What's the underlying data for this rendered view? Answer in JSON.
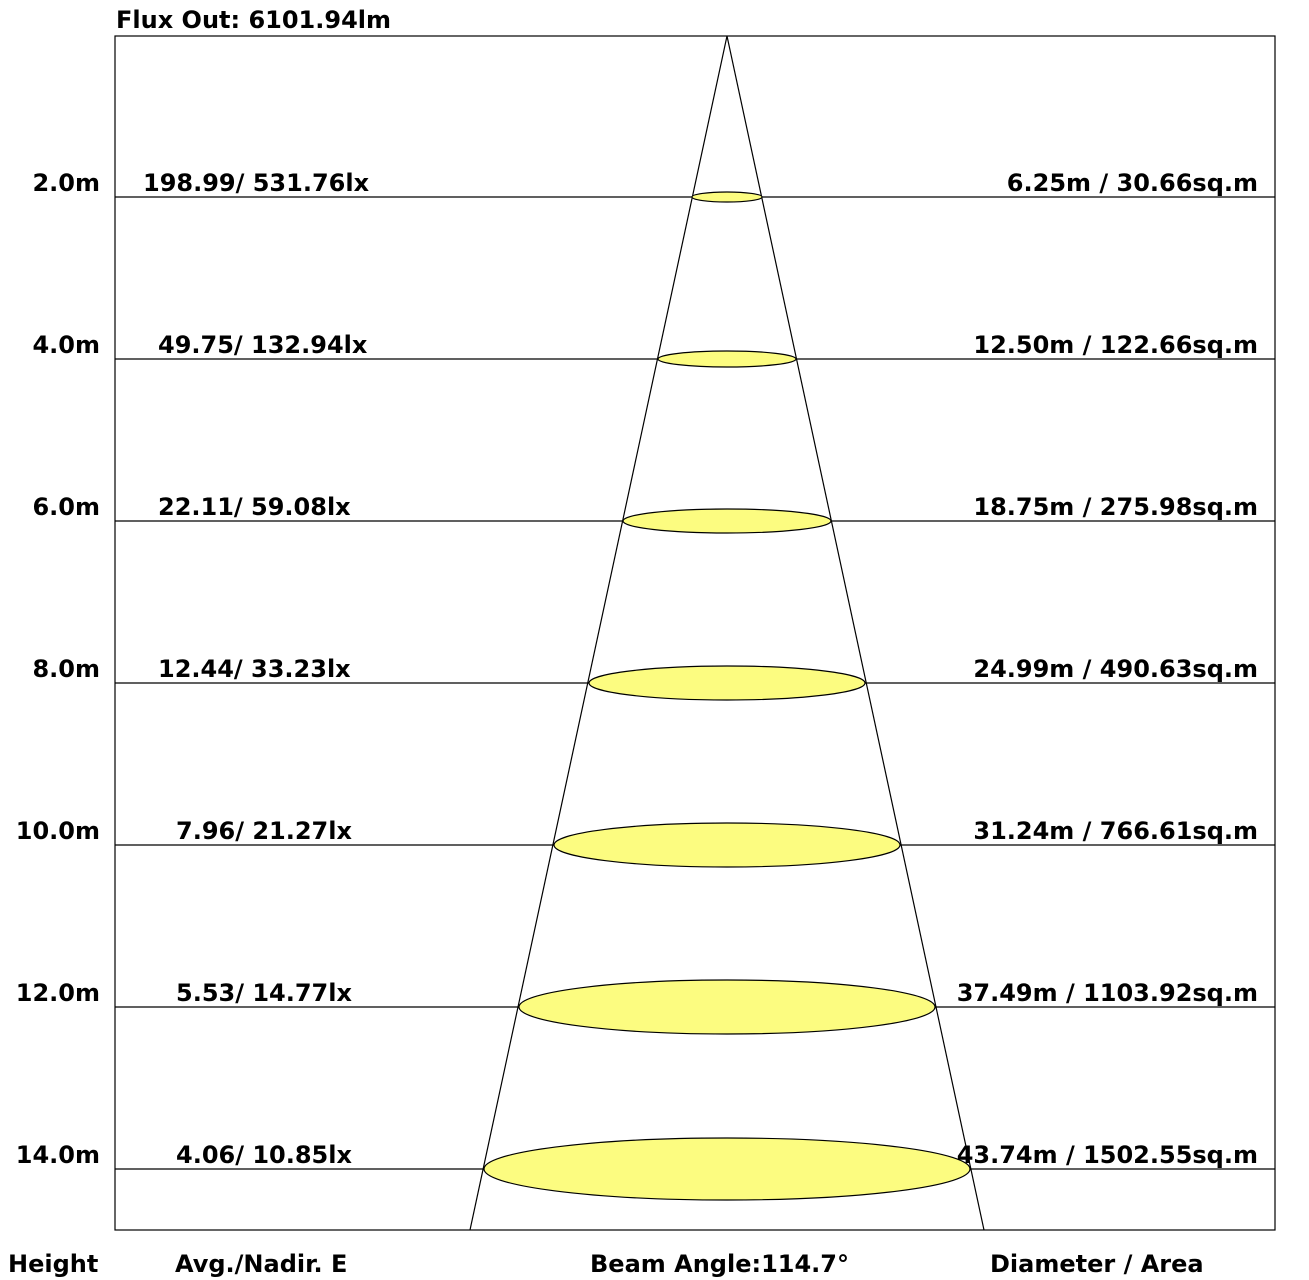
{
  "title": "Flux Out: 6101.94lm",
  "rows": [
    {
      "height": "2.0m",
      "illuminance": "198.99/ 531.76lx",
      "size": "6.25m / 30.66sq.m"
    },
    {
      "height": "4.0m",
      "illuminance": "49.75/ 132.94lx",
      "size": "12.50m / 122.66sq.m"
    },
    {
      "height": "6.0m",
      "illuminance": "22.11/ 59.08lx",
      "size": "18.75m / 275.98sq.m"
    },
    {
      "height": "8.0m",
      "illuminance": "12.44/ 33.23lx",
      "size": "24.99m / 490.63sq.m"
    },
    {
      "height": "10.0m",
      "illuminance": "7.96/ 21.27lx",
      "size": "31.24m / 766.61sq.m"
    },
    {
      "height": "12.0m",
      "illuminance": "5.53/ 14.77lx",
      "size": "37.49m / 1103.92sq.m"
    },
    {
      "height": "14.0m",
      "illuminance": "4.06/ 10.85lx",
      "size": "43.74m / 1502.55sq.m"
    }
  ],
  "footer": {
    "height_label": "Height",
    "illuminance_label": "Avg./Nadir. E",
    "beam_angle": "Beam Angle:114.7°",
    "size_label": "Diameter / Area"
  },
  "colors": {
    "spot_fill": "#fcfc80",
    "line": "#000000"
  }
}
